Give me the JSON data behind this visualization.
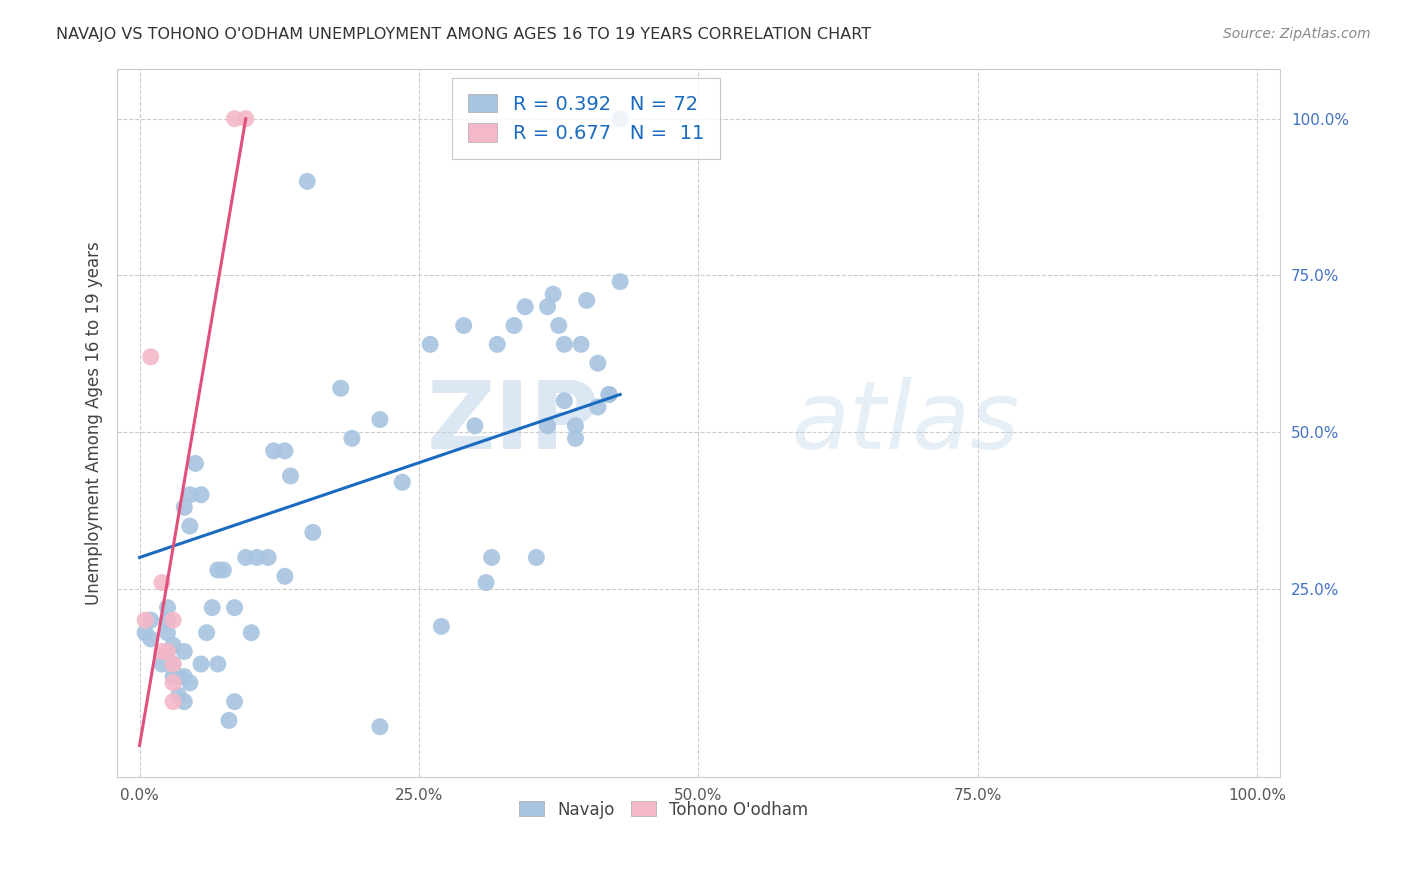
{
  "title": "NAVAJO VS TOHONO O'ODHAM UNEMPLOYMENT AMONG AGES 16 TO 19 YEARS CORRELATION CHART",
  "source": "Source: ZipAtlas.com",
  "ylabel": "Unemployment Among Ages 16 to 19 years",
  "navajo_R": 0.392,
  "navajo_N": 72,
  "tohono_R": 0.677,
  "tohono_N": 11,
  "xlim": [
    -0.02,
    1.02
  ],
  "ylim": [
    -0.05,
    1.08
  ],
  "xtick_vals": [
    0.0,
    0.25,
    0.5,
    0.75,
    1.0
  ],
  "xtick_labels": [
    "0.0%",
    "25.0%",
    "50.0%",
    "75.0%",
    "100.0%"
  ],
  "ytick_vals": [
    0.25,
    0.5,
    0.75,
    1.0
  ],
  "ytick_labels": [
    "25.0%",
    "50.0%",
    "75.0%",
    "100.0%"
  ],
  "navajo_color": "#a8c4e0",
  "tohono_color": "#f4b8c8",
  "navajo_line_color": "#1a6bbf",
  "tohono_line_color": "#e0507a",
  "legend_text_color": "#1a6bbf",
  "watermark_zip": "ZIP",
  "watermark_atlas": "atlas",
  "bg_color": "#ffffff",
  "grid_color": "#cccccc",
  "navajo_x": [
    0.005,
    0.01,
    0.01,
    0.02,
    0.025,
    0.025,
    0.025,
    0.025,
    0.03,
    0.03,
    0.03,
    0.035,
    0.035,
    0.04,
    0.04,
    0.04,
    0.04,
    0.045,
    0.045,
    0.045,
    0.05,
    0.055,
    0.055,
    0.06,
    0.065,
    0.07,
    0.07,
    0.075,
    0.08,
    0.085,
    0.085,
    0.095,
    0.1,
    0.105,
    0.115,
    0.12,
    0.13,
    0.13,
    0.135,
    0.15,
    0.155,
    0.18,
    0.19,
    0.215,
    0.215,
    0.235,
    0.26,
    0.27,
    0.29,
    0.3,
    0.31,
    0.315,
    0.32,
    0.335,
    0.345,
    0.355,
    0.365,
    0.365,
    0.37,
    0.375,
    0.38,
    0.38,
    0.39,
    0.39,
    0.395,
    0.4,
    0.41,
    0.41,
    0.42,
    0.42,
    0.43,
    0.43
  ],
  "navajo_y": [
    0.18,
    0.2,
    0.17,
    0.13,
    0.15,
    0.18,
    0.2,
    0.22,
    0.11,
    0.13,
    0.16,
    0.08,
    0.11,
    0.07,
    0.11,
    0.15,
    0.38,
    0.1,
    0.35,
    0.4,
    0.45,
    0.4,
    0.13,
    0.18,
    0.22,
    0.13,
    0.28,
    0.28,
    0.04,
    0.07,
    0.22,
    0.3,
    0.18,
    0.3,
    0.3,
    0.47,
    0.27,
    0.47,
    0.43,
    0.9,
    0.34,
    0.57,
    0.49,
    0.52,
    0.03,
    0.42,
    0.64,
    0.19,
    0.67,
    0.51,
    0.26,
    0.3,
    0.64,
    0.67,
    0.7,
    0.3,
    0.51,
    0.7,
    0.72,
    0.67,
    0.64,
    0.55,
    0.51,
    0.49,
    0.64,
    0.71,
    0.61,
    0.54,
    0.56,
    0.56,
    1.0,
    0.74
  ],
  "tohono_x": [
    0.005,
    0.01,
    0.02,
    0.02,
    0.025,
    0.03,
    0.03,
    0.03,
    0.03,
    0.085,
    0.095
  ],
  "tohono_y": [
    0.2,
    0.62,
    0.15,
    0.26,
    0.15,
    0.2,
    0.1,
    0.13,
    0.07,
    1.0,
    1.0
  ],
  "navajo_trend_x0": 0.0,
  "navajo_trend_y0": 0.3,
  "navajo_trend_x1": 0.43,
  "navajo_trend_y1": 0.56,
  "tohono_trend_x0": 0.0,
  "tohono_trend_y0": 0.0,
  "tohono_trend_x1": 0.095,
  "tohono_trend_y1": 1.0
}
